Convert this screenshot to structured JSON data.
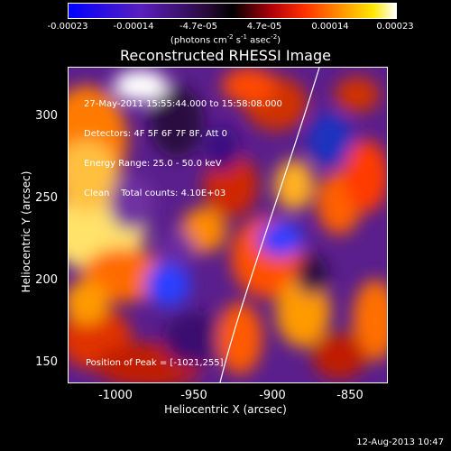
{
  "colorbar": {
    "ticks": [
      "-0.00023",
      "-0.00014",
      "-4.7e-05",
      "4.7e-05",
      "0.00014",
      "0.00023"
    ],
    "units_prefix": "(photons cm",
    "units_sup1": "-2",
    "units_mid": " s",
    "units_sup2": "-1",
    "units_mid2": " asec",
    "units_sup3": "-2",
    "units_suffix": ")"
  },
  "plot": {
    "title": "Reconstructed RHESSI Image",
    "info_lines": [
      "27-May-2011 15:55:44.000 to 15:58:08.000",
      "Detectors: 4F 5F 6F 7F 8F, Att 0",
      "Energy Range: 25.0 - 50.0 keV",
      "Clean    Total counts: 4.10E+03"
    ],
    "peak_label": "Position of Peak = [-1021,255]",
    "xlabel": "Heliocentric X (arcsec)",
    "ylabel": "Heliocentric Y (arcsec)",
    "xticks": [
      "-1000",
      "-950",
      "-900",
      "-850"
    ],
    "yticks": [
      "300",
      "250",
      "200",
      "150"
    ]
  },
  "datestamp": "12-Aug-2013 10:47",
  "colors": {
    "background": "#000000",
    "foreground": "#ffffff",
    "cmap_low": "#0000ff",
    "cmap_mid": "#000000",
    "cmap_high": "#ffffff"
  }
}
